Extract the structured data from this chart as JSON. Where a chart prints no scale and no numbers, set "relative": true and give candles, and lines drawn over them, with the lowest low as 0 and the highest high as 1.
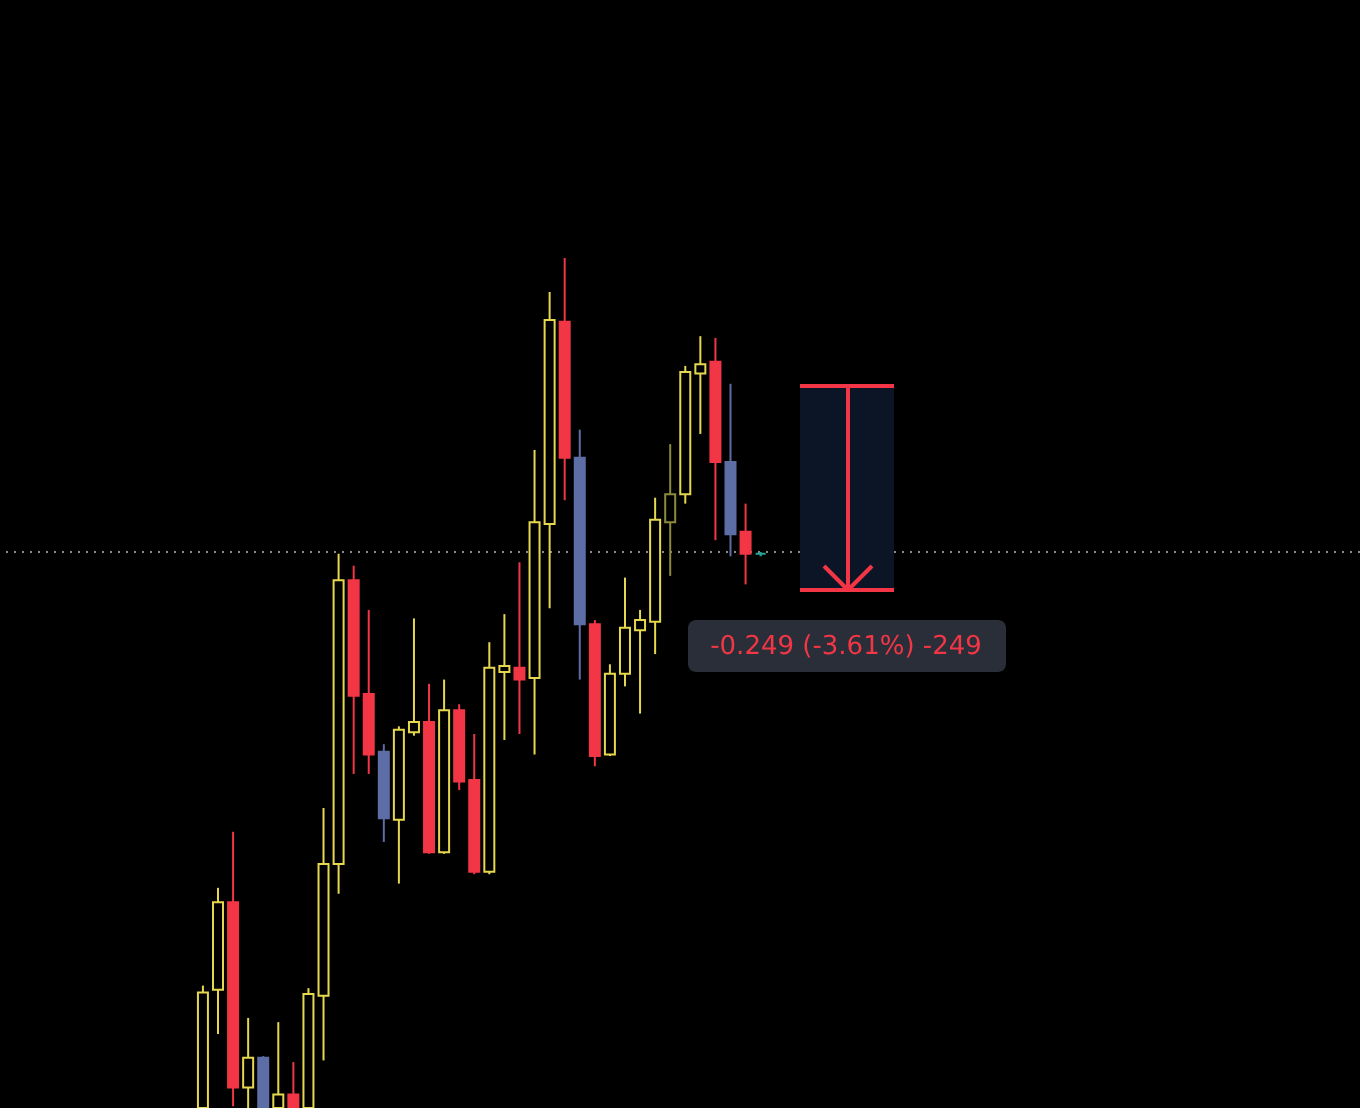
{
  "chart_data": {
    "type": "candlestick",
    "relative": true,
    "categories": [
      null,
      null,
      null,
      null,
      null,
      null,
      null,
      null,
      null,
      null,
      null,
      null,
      null,
      null,
      null,
      null,
      null,
      null,
      null,
      null,
      null,
      null,
      null,
      null,
      null,
      null,
      null,
      null,
      null,
      null,
      null,
      null,
      null,
      null,
      null,
      null,
      null,
      null
    ],
    "ohlc": [
      [
        0,
        0.144,
        0,
        0.136
      ],
      [
        0.139,
        0.259,
        0.087,
        0.242
      ],
      [
        0.242,
        0.325,
        0.002,
        0.024
      ],
      [
        0.024,
        0.106,
        0,
        0.059
      ],
      [
        0.059,
        0.061,
        0,
        0
      ],
      [
        0,
        0.101,
        0,
        0.016
      ],
      [
        0.016,
        0.054,
        0,
        0
      ],
      [
        0,
        0.141,
        0,
        0.134
      ],
      [
        0.132,
        0.353,
        0.056,
        0.287
      ],
      [
        0.287,
        0.652,
        0.252,
        0.621
      ],
      [
        0.621,
        0.638,
        0.393,
        0.485
      ],
      [
        0.487,
        0.586,
        0.393,
        0.416
      ],
      [
        0.419,
        0.428,
        0.313,
        0.341
      ],
      [
        0.339,
        0.449,
        0.264,
        0.445
      ],
      [
        0.442,
        0.576,
        0.438,
        0.454
      ],
      [
        0.454,
        0.499,
        0.299,
        0.301
      ],
      [
        0.301,
        0.504,
        0.299,
        0.468
      ],
      [
        0.468,
        0.475,
        0.374,
        0.384
      ],
      [
        0.386,
        0.44,
        0.275,
        0.278
      ],
      [
        0.278,
        0.548,
        0.275,
        0.518
      ],
      [
        0.513,
        0.581,
        0.433,
        0.52
      ],
      [
        0.518,
        0.642,
        0.44,
        0.504
      ],
      [
        0.506,
        0.774,
        0.416,
        0.689
      ],
      [
        0.687,
        0.96,
        0.588,
        0.927
      ],
      [
        0.925,
        1,
        0.715,
        0.765
      ],
      [
        0.765,
        0.798,
        0.504,
        0.569
      ],
      [
        0.569,
        0.574,
        0.402,
        0.414
      ],
      [
        0.416,
        0.522,
        0.414,
        0.511
      ],
      [
        0.511,
        0.624,
        0.496,
        0.565
      ],
      [
        0.562,
        0.586,
        0.464,
        0.574
      ],
      [
        0.572,
        0.718,
        0.534,
        0.692
      ],
      [
        0.689,
        0.781,
        0.626,
        0.722
      ],
      [
        0.722,
        0.873,
        0.711,
        0.866
      ],
      [
        0.864,
        0.908,
        0.793,
        0.875
      ],
      [
        0.878,
        0.906,
        0.668,
        0.76
      ],
      [
        0.76,
        0.852,
        0.649,
        0.675
      ],
      [
        0.678,
        0.711,
        0.616,
        0.652
      ],
      [
        0.652,
        0.654,
        0.649,
        0.652
      ]
    ],
    "colors": [
      "#e6d84e",
      "#e6d84e",
      "#f23645",
      "#e6d84e",
      "#5d6ea6",
      "#e6d84e",
      "#f23645",
      "#e6d84e",
      "#e6d84e",
      "#e6d84e",
      "#f23645",
      "#f23645",
      "#5d6ea6",
      "#e6d84e",
      "#e6d84e",
      "#f23645",
      "#e6d84e",
      "#f23645",
      "#f23645",
      "#e6d84e",
      "#e6d84e",
      "#f23645",
      "#e6d84e",
      "#e6d84e",
      "#f23645",
      "#5d6ea6",
      "#f23645",
      "#e6d84e",
      "#e6d84e",
      "#e6d84e",
      "#e6d84e",
      "#8c8a3c",
      "#e6d84e",
      "#e6d84e",
      "#f23645",
      "#5d6ea6",
      "#f23645",
      "#26a69a"
    ],
    "ref_lines": [
      {
        "axis": "y",
        "value": 0.654,
        "color": "#8a8a8a",
        "line_style": "dotted"
      }
    ],
    "annotations": [
      "-0.249 (-3.61%) -249"
    ]
  }
}
